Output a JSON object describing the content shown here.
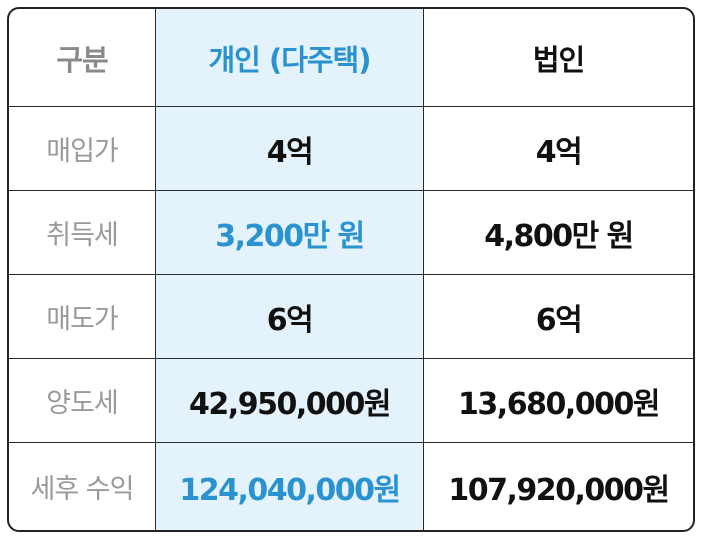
{
  "colors": {
    "accent": "#2a93cf",
    "highlight_column_bg": "#e3f2fb",
    "label_gray": "#9a9a9a",
    "text_dark": "#111111",
    "border": "#222222"
  },
  "table": {
    "headers": [
      "구분",
      "개인 (다주택)",
      "법인"
    ],
    "rows": [
      {
        "label": "매입가",
        "individual": "4억",
        "corporate": "4억"
      },
      {
        "label": "취득세",
        "individual": "3,200만 원",
        "corporate": "4,800만 원"
      },
      {
        "label": "매도가",
        "individual": "6억",
        "corporate": "6억"
      },
      {
        "label": "양도세",
        "individual": "42,950,000원",
        "corporate": "13,680,000원"
      },
      {
        "label": "세후 수익",
        "individual": "124,040,000원",
        "corporate": "107,920,000원"
      }
    ]
  }
}
